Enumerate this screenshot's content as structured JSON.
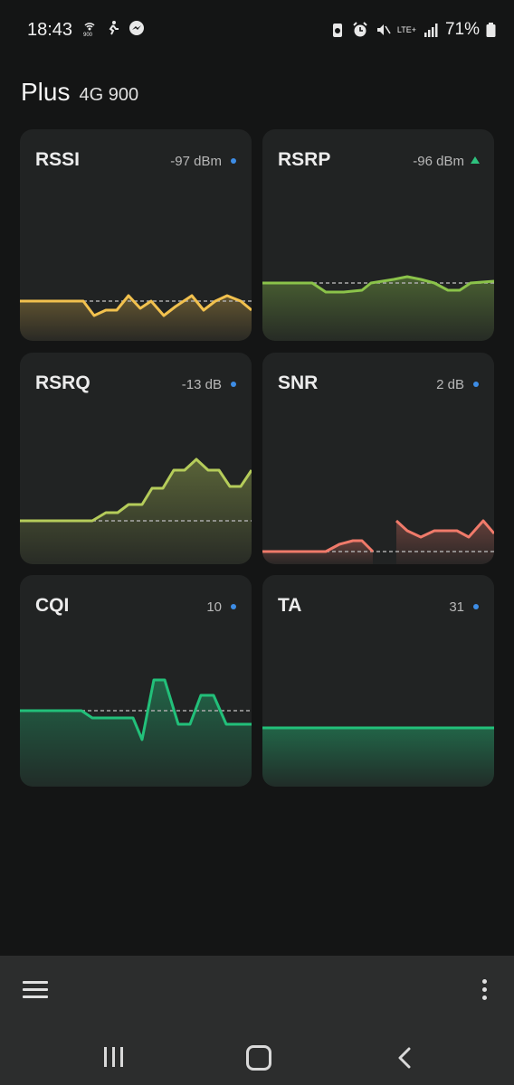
{
  "status_bar": {
    "time": "18:43",
    "network": "LTE+",
    "battery": "71%",
    "icons": [
      "hotspot-icon",
      "fitness-icon",
      "messenger-icon",
      "battery-saver-icon",
      "alarm-icon",
      "mute-icon",
      "signal-icon",
      "battery-icon"
    ]
  },
  "header": {
    "title": "Plus",
    "subtitle": "4G 900"
  },
  "cards": [
    {
      "name": "RSSI",
      "value": "-97 dBm",
      "color": "#f2c14e",
      "indicator": "dot"
    },
    {
      "name": "RSRP",
      "value": "-96 dBm",
      "color": "#8bc34a",
      "indicator": "up"
    },
    {
      "name": "RSRQ",
      "value": "-13 dB",
      "color": "#b5cc5a",
      "indicator": "dot"
    },
    {
      "name": "SNR",
      "value": "2 dB",
      "color": "#f07a6a",
      "indicator": "dot"
    },
    {
      "name": "CQI",
      "value": "10",
      "color": "#22c07a",
      "indicator": "dot"
    },
    {
      "name": "TA",
      "value": "31",
      "color": "#22c07a",
      "indicator": "dot"
    }
  ],
  "bottom_bar": {
    "menu_icon": "menu-icon",
    "more_icon": "more-vert-icon"
  },
  "nav_bar": {
    "recent_icon": "recent-apps-icon",
    "home_icon": "home-icon",
    "back_icon": "back-icon"
  }
}
